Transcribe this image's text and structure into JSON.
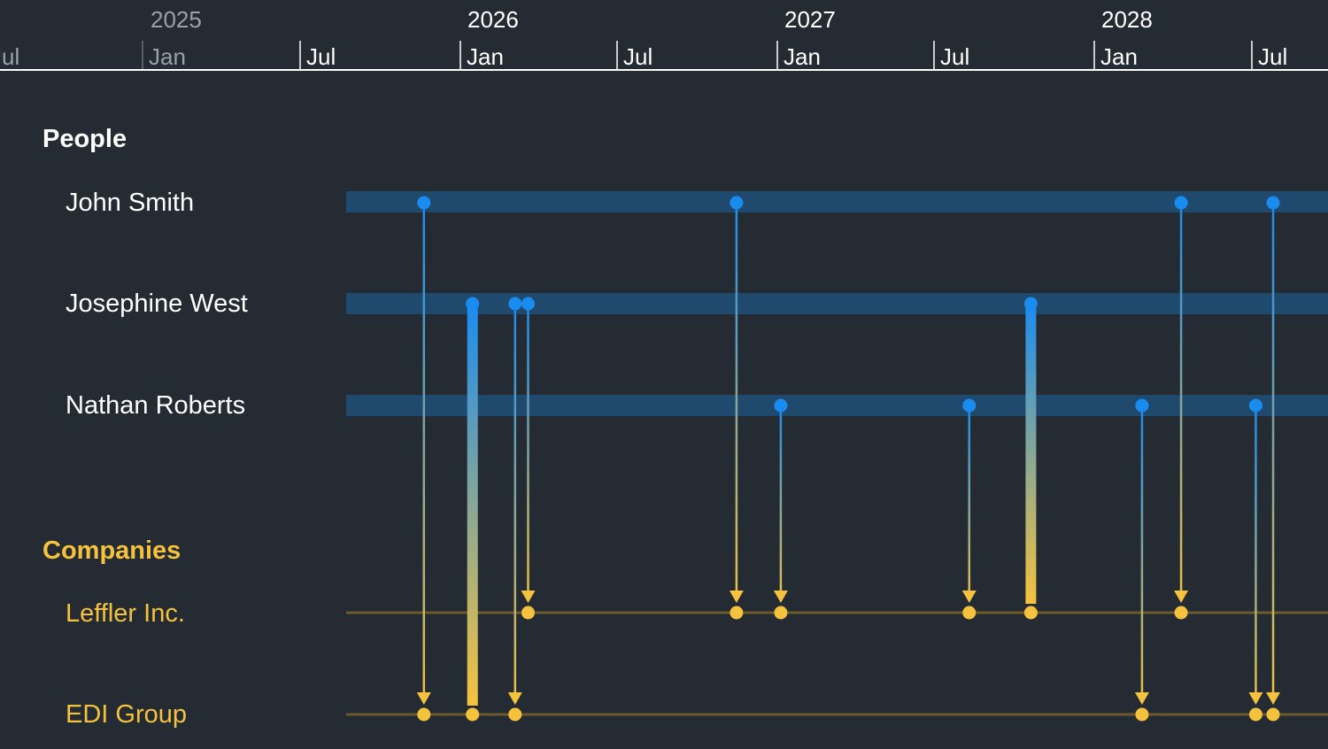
{
  "axis": {
    "years": [
      {
        "label": "2025",
        "faded": true
      },
      {
        "label": "2026",
        "faded": false
      },
      {
        "label": "2027",
        "faded": false
      },
      {
        "label": "2028",
        "faded": false
      }
    ],
    "months": [
      {
        "label": "Jul",
        "faded": true
      },
      {
        "label": "Jan",
        "faded": true
      },
      {
        "label": "Jul",
        "faded": false
      },
      {
        "label": "Jan",
        "faded": false
      },
      {
        "label": "Jul",
        "faded": false
      },
      {
        "label": "Jan",
        "faded": false
      },
      {
        "label": "Jul",
        "faded": false
      },
      {
        "label": "Jan",
        "faded": false
      },
      {
        "label": "Jul",
        "faded": false
      }
    ]
  },
  "groups": {
    "people": {
      "title": "People",
      "color": "#ffffff"
    },
    "companies": {
      "title": "Companies",
      "color": "#f5c23e"
    }
  },
  "people": [
    "John Smith",
    "Josephine West",
    "Nathan Roberts"
  ],
  "companies": [
    "Leffler Inc.",
    "EDI Group"
  ],
  "colors": {
    "background": "#252b33",
    "person_band": "#1f4a6e",
    "company_line": "#6b5a2c",
    "person_node": "#1a8cf0",
    "company_node": "#f5c23e",
    "axis_text": "#ffffff",
    "axis_faded_text": "#9aa0a6"
  },
  "links": [
    {
      "from": "John Smith",
      "to": "EDI Group",
      "date": "2025-11-20",
      "weight": 1
    },
    {
      "from": "John Smith",
      "to": "Leffler Inc.",
      "date": "2026-11-15",
      "weight": 1
    },
    {
      "from": "John Smith",
      "to": "Leffler Inc.",
      "date": "2028-04-10",
      "weight": 1
    },
    {
      "from": "John Smith",
      "to": "EDI Group",
      "date": "2028-07-25",
      "weight": 1
    },
    {
      "from": "Josephine West",
      "to": "EDI Group",
      "date": "2026-01-15",
      "weight": 3
    },
    {
      "from": "Josephine West",
      "to": "EDI Group",
      "date": "2026-03-05",
      "weight": 1
    },
    {
      "from": "Josephine West",
      "to": "Leffler Inc.",
      "date": "2026-03-20",
      "weight": 1
    },
    {
      "from": "Josephine West",
      "to": "Leffler Inc.",
      "date": "2027-10-20",
      "weight": 3
    },
    {
      "from": "Nathan Roberts",
      "to": "Leffler Inc.",
      "date": "2027-01-05",
      "weight": 1
    },
    {
      "from": "Nathan Roberts",
      "to": "Leffler Inc.",
      "date": "2027-08-10",
      "weight": 1
    },
    {
      "from": "Nathan Roberts",
      "to": "EDI Group",
      "date": "2028-02-25",
      "weight": 1
    },
    {
      "from": "Nathan Roberts",
      "to": "EDI Group",
      "date": "2028-07-05",
      "weight": 1
    }
  ]
}
